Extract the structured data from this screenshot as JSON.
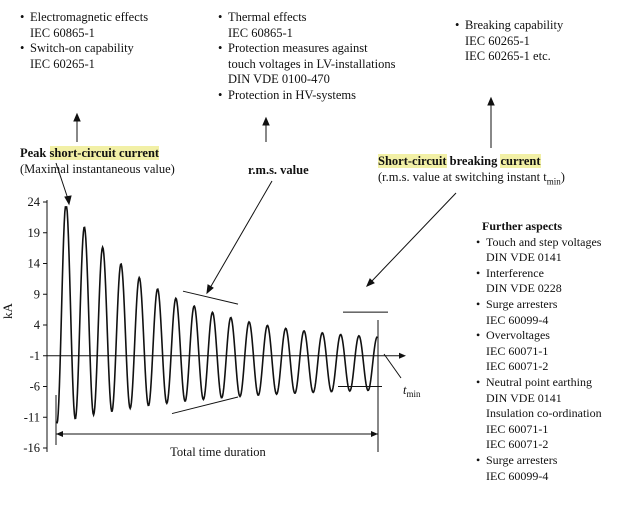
{
  "top_blocks": {
    "left": {
      "b1": "Electromagnetic effects",
      "b1_std": "IEC 60865-1",
      "b2": "Switch-on capability",
      "b2_std": "IEC 60265-1"
    },
    "middle": {
      "b1": "Thermal effects",
      "b1_std": "IEC 60865-1",
      "b2_l1": "Protection measures against",
      "b2_l2": "touch voltages in LV-installations",
      "b2_std": "DIN VDE 0100-470",
      "b3": "Protection in HV-systems"
    },
    "right": {
      "b1": "Breaking capability",
      "b1_std1": "IEC 60265-1",
      "b1_std2": "IEC 60265-1 etc."
    }
  },
  "labels": {
    "peak_word": "Peak",
    "peak_highlight": "short-circuit current",
    "peak_sub": "(Maximal instantaneous value)",
    "rms_value": "r.m.s. value",
    "breaking_highlight_1": "Short-circuit",
    "breaking_word": "breaking",
    "breaking_highlight_2": "current",
    "breaking_sub": "(r.m.s. value at switching instant t",
    "breaking_sub_subscript": "min",
    "breaking_sub_close": ")",
    "total_time": "Total time duration",
    "t_min": "t",
    "t_min_sub": "min"
  },
  "further": {
    "title": "Further aspects",
    "items": [
      {
        "label": "Touch and step voltages",
        "std": [
          "DIN VDE 0141"
        ]
      },
      {
        "label": "Interference",
        "std": [
          "DIN VDE 0228"
        ]
      },
      {
        "label": "Surge arresters",
        "std": [
          "IEC 60099-4"
        ]
      },
      {
        "label": "Overvoltages",
        "std": [
          "IEC 60071-1",
          "IEC 60071-2"
        ]
      },
      {
        "label": "Neutral point earthing",
        "std": [
          "DIN VDE 0141"
        ]
      },
      {
        "label": "Insulation co-ordination",
        "std": [
          "IEC 60071-1",
          "IEC 60071-2"
        ],
        "no_bullet": true
      },
      {
        "label": "Surge arresters",
        "std": [
          "IEC 60099-4"
        ]
      }
    ]
  },
  "chart_data": {
    "type": "line",
    "ylabel": "kA",
    "yticks": [
      "24",
      "19",
      "14",
      "9",
      "4",
      "-1",
      "-6",
      "-11",
      "-16"
    ],
    "ytick_values": [
      24,
      19,
      14,
      9,
      4,
      -1,
      -6,
      -11,
      -16
    ],
    "ylim": [
      -16,
      24
    ]
  }
}
